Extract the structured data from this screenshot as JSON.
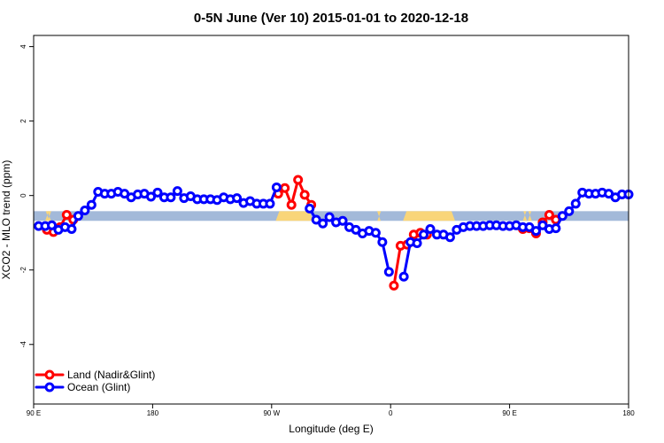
{
  "chart_data": {
    "type": "line",
    "title": "0-5N June (Ver 10)   2015-01-01 to 2020-12-18",
    "xlabel": "Longitude (deg E)",
    "ylabel": "XCO2 - MLO trend (ppm)",
    "xlim": [
      90,
      450
    ],
    "ylim": [
      -5.6,
      4.3
    ],
    "x_ticks": [
      {
        "value": 90,
        "label": "90 E"
      },
      {
        "value": 162,
        "label": "180"
      },
      {
        "value": 234,
        "label": "90 W"
      },
      {
        "value": 306,
        "label": "0"
      },
      {
        "value": 378,
        "label": "90 E"
      },
      {
        "value": 450,
        "label": "180"
      }
    ],
    "y_ticks": [
      {
        "value": -4,
        "label": "-4"
      },
      {
        "value": -2,
        "label": "-2"
      },
      {
        "value": 0,
        "label": "0"
      },
      {
        "value": 2,
        "label": "2"
      },
      {
        "value": 4,
        "label": "4"
      }
    ],
    "grid": false,
    "legend_position": "bottom-left",
    "surface_band": {
      "y_range": [
        -0.68,
        -0.42
      ],
      "ocean_color": "#a3b9d9",
      "land_color": "#f9d579",
      "land_segments": [
        [
          97,
          99.5
        ],
        [
          98.5,
          100.5
        ],
        [
          236.5,
          259
        ],
        [
          298,
          300
        ],
        [
          313.5,
          345
        ],
        [
          386,
          388.5
        ],
        [
          389,
          391.5
        ]
      ]
    },
    "series": [
      {
        "name": "Land (Nadir&Glint)",
        "color": "#ff0000",
        "segments": [
          [
            [
              98,
              -0.92
            ],
            [
              102,
              -0.98
            ],
            [
              106,
              -0.85
            ],
            [
              110,
              -0.52
            ],
            [
              114,
              -0.65
            ]
          ],
          [
            [
              238,
              0.05
            ],
            [
              242,
              0.2
            ],
            [
              246,
              -0.25
            ],
            [
              250,
              0.42
            ],
            [
              254,
              0.02
            ],
            [
              258,
              -0.25
            ]
          ],
          [
            [
              308,
              -2.42
            ],
            [
              312,
              -1.35
            ],
            [
              316,
              -1.32
            ],
            [
              320,
              -1.05
            ],
            [
              324,
              -1.0
            ],
            [
              328,
              -1.05
            ]
          ],
          [
            [
              386,
              -0.9
            ],
            [
              390,
              -0.88
            ],
            [
              394,
              -1.02
            ],
            [
              398,
              -0.72
            ],
            [
              402,
              -0.52
            ],
            [
              406,
              -0.65
            ]
          ]
        ]
      },
      {
        "name": "Ocean (Glint)",
        "color": "#0000ff",
        "segments": [
          [
            [
              93,
              -0.82
            ],
            [
              97,
              -0.82
            ],
            [
              101,
              -0.8
            ],
            [
              105,
              -0.92
            ],
            [
              109,
              -0.85
            ],
            [
              113,
              -0.9
            ],
            [
              117,
              -0.55
            ],
            [
              121,
              -0.4
            ],
            [
              125,
              -0.25
            ],
            [
              129,
              0.1
            ],
            [
              133,
              0.05
            ],
            [
              137,
              0.05
            ],
            [
              141,
              0.1
            ],
            [
              145,
              0.05
            ],
            [
              149,
              -0.05
            ],
            [
              153,
              0.03
            ],
            [
              157,
              0.05
            ],
            [
              161,
              -0.03
            ],
            [
              165,
              0.08
            ],
            [
              169,
              -0.05
            ],
            [
              173,
              -0.05
            ],
            [
              177,
              0.12
            ],
            [
              181,
              -0.07
            ],
            [
              185,
              -0.02
            ],
            [
              189,
              -0.1
            ],
            [
              193,
              -0.1
            ],
            [
              197,
              -0.1
            ],
            [
              201,
              -0.12
            ],
            [
              205,
              -0.05
            ],
            [
              209,
              -0.1
            ],
            [
              213,
              -0.07
            ],
            [
              217,
              -0.2
            ],
            [
              221,
              -0.15
            ],
            [
              225,
              -0.22
            ],
            [
              229,
              -0.22
            ],
            [
              233,
              -0.22
            ],
            [
              237,
              0.22
            ]
          ],
          [
            [
              257,
              -0.35
            ],
            [
              261,
              -0.65
            ],
            [
              265,
              -0.75
            ],
            [
              269,
              -0.58
            ],
            [
              273,
              -0.72
            ],
            [
              277,
              -0.68
            ],
            [
              281,
              -0.85
            ],
            [
              285,
              -0.92
            ],
            [
              289,
              -1.02
            ],
            [
              293,
              -0.95
            ],
            [
              297,
              -1.0
            ],
            [
              301,
              -1.25
            ],
            [
              305,
              -2.05
            ]
          ],
          [
            [
              314,
              -2.18
            ],
            [
              318,
              -1.25
            ],
            [
              322,
              -1.28
            ],
            [
              326,
              -1.05
            ],
            [
              330,
              -0.9
            ],
            [
              334,
              -1.05
            ],
            [
              338,
              -1.05
            ],
            [
              342,
              -1.12
            ],
            [
              346,
              -0.92
            ],
            [
              350,
              -0.85
            ],
            [
              354,
              -0.82
            ],
            [
              358,
              -0.82
            ],
            [
              362,
              -0.82
            ],
            [
              366,
              -0.8
            ],
            [
              370,
              -0.8
            ],
            [
              374,
              -0.82
            ],
            [
              378,
              -0.82
            ],
            [
              382,
              -0.8
            ],
            [
              386,
              -0.85
            ],
            [
              390,
              -0.85
            ],
            [
              394,
              -0.95
            ],
            [
              398,
              -0.8
            ],
            [
              402,
              -0.9
            ],
            [
              406,
              -0.88
            ],
            [
              410,
              -0.55
            ],
            [
              414,
              -0.42
            ],
            [
              418,
              -0.22
            ],
            [
              422,
              0.08
            ],
            [
              426,
              0.05
            ],
            [
              430,
              0.05
            ],
            [
              434,
              0.08
            ],
            [
              438,
              0.05
            ],
            [
              442,
              -0.05
            ],
            [
              446,
              0.03
            ],
            [
              450,
              0.03
            ]
          ]
        ]
      }
    ]
  }
}
